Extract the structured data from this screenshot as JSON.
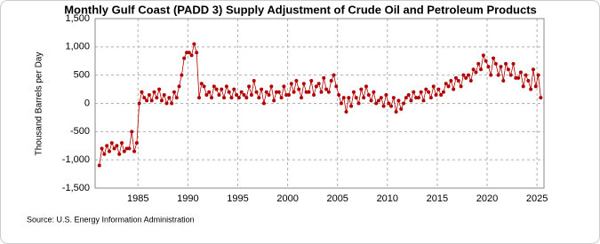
{
  "chart_data": {
    "type": "line",
    "title": "Monthly Gulf Coast (PADD 3) Supply Adjustment of Crude Oil and Petroleum Products",
    "y_label": "Thousand Barrels per Day",
    "source": "Source: U.S. Energy Information Administration",
    "xlim": [
      1980.7,
      2025.7
    ],
    "xticks": [
      1985,
      1990,
      1995,
      2000,
      2005,
      2010,
      2015,
      2020,
      2025
    ],
    "ylim": [
      -1500,
      1500
    ],
    "yticks": [
      {
        "value": -1500,
        "label": "-1,500"
      },
      {
        "value": -1000,
        "label": "-1,000"
      },
      -500,
      0,
      500,
      {
        "value": 1000,
        "label": "1,000"
      },
      {
        "value": 1500,
        "label": "1,500"
      }
    ],
    "grid": true,
    "series": [
      {
        "name": "Supply Adjustment",
        "color": "#b00000",
        "x": [
          1981.125,
          1981.375,
          1981.625,
          1981.875,
          1982.125,
          1982.375,
          1982.625,
          1982.875,
          1983.125,
          1983.375,
          1983.625,
          1983.875,
          1984.125,
          1984.375,
          1984.625,
          1984.875,
          1985.125,
          1985.375,
          1985.625,
          1985.875,
          1986.125,
          1986.375,
          1986.625,
          1986.875,
          1987.125,
          1987.375,
          1987.625,
          1987.875,
          1988.125,
          1988.375,
          1988.625,
          1988.875,
          1989.125,
          1989.375,
          1989.625,
          1989.875,
          1990.125,
          1990.375,
          1990.625,
          1990.875,
          1991.125,
          1991.375,
          1991.625,
          1991.875,
          1992.125,
          1992.375,
          1992.625,
          1992.875,
          1993.125,
          1993.375,
          1993.625,
          1993.875,
          1994.125,
          1994.375,
          1994.625,
          1994.875,
          1995.125,
          1995.375,
          1995.625,
          1995.875,
          1996.125,
          1996.375,
          1996.625,
          1996.875,
          1997.125,
          1997.375,
          1997.625,
          1997.875,
          1998.125,
          1998.375,
          1998.625,
          1998.875,
          1999.125,
          1999.375,
          1999.625,
          1999.875,
          2000.125,
          2000.375,
          2000.625,
          2000.875,
          2001.125,
          2001.375,
          2001.625,
          2001.875,
          2002.125,
          2002.375,
          2002.625,
          2002.875,
          2003.125,
          2003.375,
          2003.625,
          2003.875,
          2004.125,
          2004.375,
          2004.625,
          2004.875,
          2005.125,
          2005.375,
          2005.625,
          2005.875,
          2006.125,
          2006.375,
          2006.625,
          2006.875,
          2007.125,
          2007.375,
          2007.625,
          2007.875,
          2008.125,
          2008.375,
          2008.625,
          2008.875,
          2009.125,
          2009.375,
          2009.625,
          2009.875,
          2010.125,
          2010.375,
          2010.625,
          2010.875,
          2011.125,
          2011.375,
          2011.625,
          2011.875,
          2012.125,
          2012.375,
          2012.625,
          2012.875,
          2013.125,
          2013.375,
          2013.625,
          2013.875,
          2014.125,
          2014.375,
          2014.625,
          2014.875,
          2015.125,
          2015.375,
          2015.625,
          2015.875,
          2016.125,
          2016.375,
          2016.625,
          2016.875,
          2017.125,
          2017.375,
          2017.625,
          2017.875,
          2018.125,
          2018.375,
          2018.625,
          2018.875,
          2019.125,
          2019.375,
          2019.625,
          2019.875,
          2020.125,
          2020.375,
          2020.625,
          2020.875,
          2021.125,
          2021.375,
          2021.625,
          2021.875,
          2022.125,
          2022.375,
          2022.625,
          2022.875,
          2023.125,
          2023.375,
          2023.625,
          2023.875,
          2024.125,
          2024.375,
          2024.625,
          2024.875,
          2025.125,
          2025.375
        ],
        "values": [
          -1100,
          -800,
          -900,
          -750,
          -850,
          -700,
          -800,
          -750,
          -900,
          -700,
          -850,
          -800,
          -800,
          -500,
          -850,
          -700,
          0,
          200,
          100,
          50,
          150,
          50,
          200,
          100,
          250,
          50,
          150,
          0,
          100,
          0,
          200,
          100,
          300,
          500,
          800,
          900,
          900,
          850,
          1050,
          900,
          100,
          350,
          300,
          150,
          200,
          100,
          300,
          250,
          150,
          250,
          100,
          300,
          200,
          100,
          250,
          150,
          100,
          200,
          150,
          100,
          300,
          150,
          400,
          200,
          100,
          250,
          0,
          200,
          150,
          300,
          50,
          200,
          200,
          100,
          300,
          150,
          150,
          350,
          200,
          400,
          250,
          100,
          350,
          200,
          200,
          400,
          150,
          300,
          350,
          200,
          450,
          250,
          200,
          400,
          500,
          300,
          150,
          0,
          100,
          -150,
          100,
          -50,
          200,
          100,
          0,
          250,
          100,
          300,
          150,
          50,
          200,
          0,
          50,
          100,
          -50,
          150,
          0,
          -50,
          100,
          -150,
          50,
          -100,
          0,
          100,
          150,
          50,
          200,
          100,
          100,
          200,
          50,
          250,
          200,
          100,
          300,
          150,
          250,
          150,
          200,
          350,
          300,
          400,
          250,
          450,
          400,
          300,
          500,
          450,
          500,
          400,
          600,
          550,
          700,
          600,
          850,
          750,
          650,
          500,
          800,
          700,
          500,
          650,
          400,
          700,
          600,
          500,
          700,
          450,
          450,
          550,
          300,
          500,
          400,
          250,
          600,
          300,
          500,
          100
        ]
      }
    ]
  }
}
